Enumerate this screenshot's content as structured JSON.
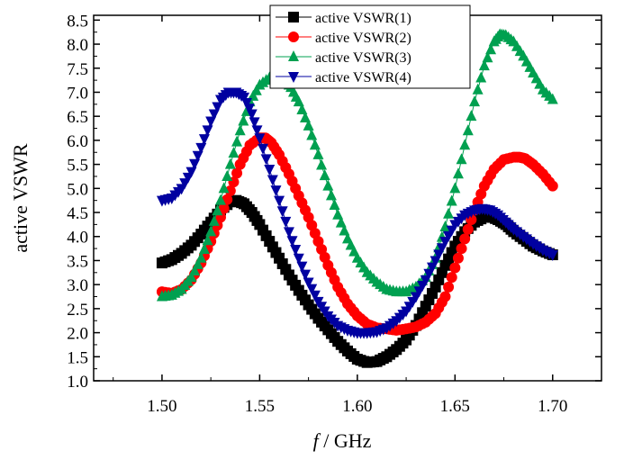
{
  "chart_data": {
    "type": "scatter",
    "xlabel_italic": "f",
    "xlabel_unit": "/ GHz",
    "ylabel": "active VSWR",
    "xlim": [
      1.465,
      1.725
    ],
    "ylim": [
      1.0,
      8.6
    ],
    "xticks": [
      1.5,
      1.55,
      1.6,
      1.65,
      1.7
    ],
    "xtick_labels": [
      "1.50",
      "1.55",
      "1.60",
      "1.65",
      "1.70"
    ],
    "yticks": [
      1.0,
      1.5,
      2.0,
      2.5,
      3.0,
      3.5,
      4.0,
      4.5,
      5.0,
      5.5,
      6.0,
      6.5,
      7.0,
      7.5,
      8.0,
      8.5
    ],
    "ytick_labels": [
      "1.0",
      "1.5",
      "2.0",
      "2.5",
      "3.0",
      "3.5",
      "4.0",
      "4.5",
      "5.0",
      "5.5",
      "6.0",
      "6.5",
      "7.0",
      "7.5",
      "8.0",
      "8.5"
    ],
    "grid": false,
    "legend_position": "top-center",
    "series": [
      {
        "name": "active VSWR(1)",
        "color": "#000000",
        "marker": "square",
        "x": [
          1.5,
          1.505,
          1.51,
          1.515,
          1.52,
          1.525,
          1.53,
          1.535,
          1.538,
          1.542,
          1.546,
          1.55,
          1.555,
          1.56,
          1.565,
          1.57,
          1.575,
          1.58,
          1.585,
          1.59,
          1.595,
          1.6,
          1.605,
          1.61,
          1.615,
          1.62,
          1.625,
          1.63,
          1.635,
          1.64,
          1.645,
          1.65,
          1.655,
          1.66,
          1.665,
          1.668,
          1.672,
          1.676,
          1.68,
          1.685,
          1.69,
          1.695,
          1.7
        ],
        "y": [
          3.45,
          3.52,
          3.65,
          3.82,
          4.05,
          4.3,
          4.55,
          4.72,
          4.75,
          4.68,
          4.5,
          4.25,
          3.9,
          3.55,
          3.2,
          2.88,
          2.58,
          2.3,
          2.06,
          1.82,
          1.62,
          1.45,
          1.38,
          1.4,
          1.5,
          1.65,
          1.85,
          2.15,
          2.55,
          2.95,
          3.4,
          3.8,
          4.1,
          4.3,
          4.4,
          4.42,
          4.35,
          4.25,
          4.1,
          3.95,
          3.8,
          3.7,
          3.62
        ]
      },
      {
        "name": "active VSWR(2)",
        "color": "#ff0000",
        "marker": "circle",
        "x": [
          1.5,
          1.505,
          1.51,
          1.515,
          1.52,
          1.525,
          1.53,
          1.535,
          1.54,
          1.545,
          1.55,
          1.553,
          1.556,
          1.56,
          1.565,
          1.57,
          1.575,
          1.58,
          1.585,
          1.59,
          1.595,
          1.6,
          1.605,
          1.61,
          1.615,
          1.62,
          1.625,
          1.63,
          1.635,
          1.64,
          1.645,
          1.65,
          1.655,
          1.66,
          1.665,
          1.67,
          1.675,
          1.68,
          1.683,
          1.686,
          1.69,
          1.695,
          1.7
        ],
        "y": [
          2.85,
          2.82,
          2.9,
          3.1,
          3.45,
          3.9,
          4.4,
          4.95,
          5.5,
          5.9,
          6.05,
          6.05,
          5.95,
          5.7,
          5.3,
          4.85,
          4.4,
          3.9,
          3.4,
          2.95,
          2.6,
          2.35,
          2.18,
          2.1,
          2.08,
          2.05,
          2.08,
          2.12,
          2.22,
          2.4,
          2.75,
          3.35,
          3.95,
          4.55,
          5.05,
          5.4,
          5.6,
          5.65,
          5.65,
          5.62,
          5.5,
          5.3,
          5.05
        ]
      },
      {
        "name": "active VSWR(3)",
        "color": "#00a050",
        "marker": "triangle-up",
        "x": [
          1.5,
          1.505,
          1.51,
          1.515,
          1.52,
          1.525,
          1.53,
          1.535,
          1.54,
          1.545,
          1.55,
          1.555,
          1.56,
          1.563,
          1.566,
          1.57,
          1.575,
          1.58,
          1.585,
          1.59,
          1.595,
          1.6,
          1.605,
          1.61,
          1.615,
          1.62,
          1.625,
          1.63,
          1.635,
          1.64,
          1.645,
          1.65,
          1.655,
          1.66,
          1.665,
          1.67,
          1.673,
          1.676,
          1.68,
          1.685,
          1.69,
          1.695,
          1.7
        ],
        "y": [
          2.75,
          2.78,
          2.9,
          3.15,
          3.55,
          4.1,
          4.75,
          5.5,
          6.2,
          6.8,
          7.15,
          7.3,
          7.3,
          7.25,
          7.1,
          6.8,
          6.3,
          5.7,
          5.05,
          4.45,
          3.95,
          3.55,
          3.25,
          3.05,
          2.9,
          2.85,
          2.85,
          2.95,
          3.15,
          3.55,
          4.2,
          5.0,
          5.9,
          6.8,
          7.55,
          8.05,
          8.2,
          8.18,
          8.05,
          7.75,
          7.4,
          7.05,
          6.85
        ]
      },
      {
        "name": "active VSWR(4)",
        "color": "#0000a0",
        "marker": "triangle-down",
        "x": [
          1.5,
          1.505,
          1.51,
          1.515,
          1.52,
          1.525,
          1.53,
          1.534,
          1.538,
          1.542,
          1.546,
          1.55,
          1.555,
          1.56,
          1.565,
          1.57,
          1.575,
          1.58,
          1.585,
          1.59,
          1.595,
          1.6,
          1.605,
          1.61,
          1.615,
          1.62,
          1.625,
          1.63,
          1.635,
          1.64,
          1.645,
          1.65,
          1.655,
          1.66,
          1.664,
          1.668,
          1.672,
          1.676,
          1.68,
          1.685,
          1.69,
          1.695,
          1.7
        ],
        "y": [
          4.75,
          4.8,
          5.0,
          5.35,
          5.85,
          6.4,
          6.85,
          7.0,
          7.0,
          6.9,
          6.55,
          6.05,
          5.4,
          4.75,
          4.1,
          3.55,
          3.05,
          2.65,
          2.35,
          2.15,
          2.05,
          2.0,
          2.0,
          2.02,
          2.1,
          2.25,
          2.45,
          2.75,
          3.1,
          3.5,
          3.9,
          4.25,
          4.45,
          4.55,
          4.58,
          4.55,
          4.45,
          4.3,
          4.15,
          4.0,
          3.85,
          3.72,
          3.62
        ]
      }
    ]
  }
}
